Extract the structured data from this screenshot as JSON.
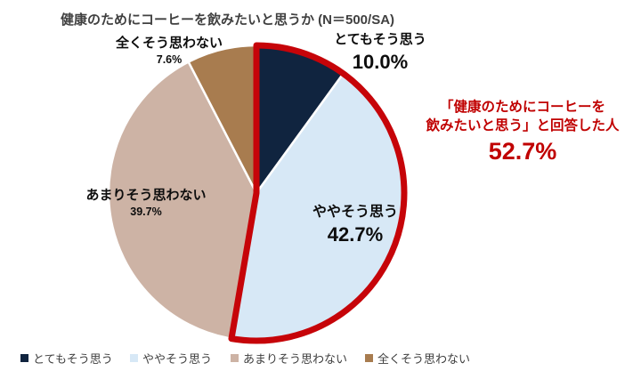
{
  "chart_data": {
    "type": "pie",
    "title": "健康のためにコーヒーを飲みたいと思うか (N＝500/SA)",
    "direction": "clockwise",
    "start_angle_deg": 0,
    "legend_position": "bottom",
    "slices": [
      {
        "label": "とてもそう思う",
        "value": 10.0,
        "display": "10.0%",
        "color": "#10243F"
      },
      {
        "label": "ややそう思う",
        "value": 42.7,
        "display": "42.7%",
        "color": "#D7E8F6"
      },
      {
        "label": "あまりそう思わない",
        "value": 39.7,
        "display": "39.7%",
        "color": "#CDB3A5"
      },
      {
        "label": "全くそう思わない",
        "value": 7.6,
        "display": "7.6%",
        "color": "#A87C4F"
      }
    ],
    "slice_border_color": "#FFFFFF",
    "highlight": {
      "slices": [
        "とてもそう思う",
        "ややそう思う"
      ],
      "total_value": 52.7,
      "display": "52.7%",
      "label_line1": "「健康のためにコーヒーを",
      "label_line2": "飲みたいと思う」と回答した人",
      "text_color": "#C00000",
      "outline_color": "#C60409"
    }
  }
}
